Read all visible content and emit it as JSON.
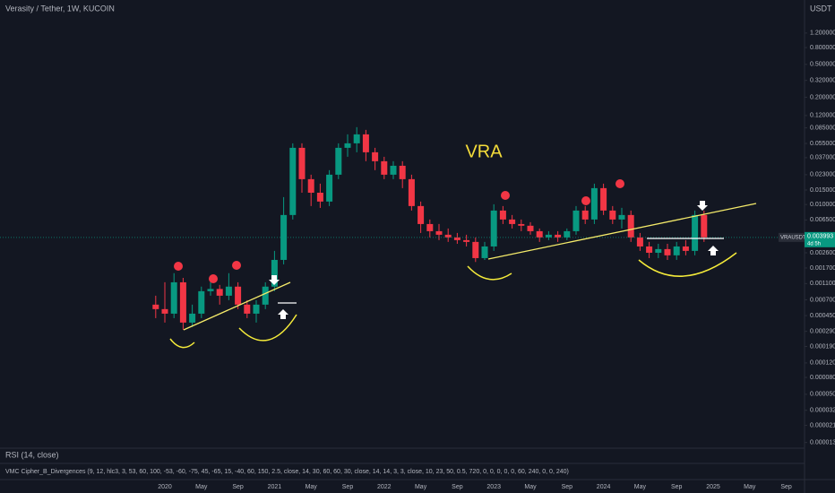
{
  "chart_data": {
    "type": "candlestick",
    "title": "Verasity / Tether, 1W, KUCOIN",
    "currency": "USDT",
    "symbol_tag": "VRAUSDT",
    "last_price": 0.003993,
    "countdown": "4d 5h",
    "annotations": [
      "VRA"
    ],
    "indicators": [
      "RSI (14, close)",
      "VMC Cipher_B_Divergences (9, 12, hlc3, 3, 53, 60, 100, -53, -60, -75, 45, -65, 15, -40, 60, 150, 2.5, close, 14, 30, 60, 60, 30, close, 14, 14, 3, 3, close, 10, 23, 50, 0.5, 720, 0, 0, 0, 0, 0, 60, 240, 0, 0, 240)"
    ],
    "log_scale": true,
    "grid": false,
    "up_color": "#089981",
    "down_color": "#f23645",
    "x": [
      "2019-12",
      "2020-01",
      "2020-02",
      "2020-03",
      "2020-04",
      "2020-05",
      "2020-06",
      "2020-07",
      "2020-08",
      "2020-09",
      "2020-10",
      "2020-11",
      "2020-12",
      "2021-01",
      "2021-02",
      "2021-03",
      "2021-04",
      "2021-05",
      "2021-06",
      "2021-07",
      "2021-08",
      "2021-09",
      "2021-10",
      "2021-11",
      "2021-12",
      "2022-01",
      "2022-02",
      "2022-03",
      "2022-04",
      "2022-05",
      "2022-06",
      "2022-07",
      "2022-08",
      "2022-09",
      "2022-10",
      "2022-11",
      "2022-12",
      "2023-01",
      "2023-02",
      "2023-03",
      "2023-04",
      "2023-05",
      "2023-06",
      "2023-07",
      "2023-08",
      "2023-09",
      "2023-10",
      "2023-11",
      "2023-12",
      "2024-01",
      "2024-02",
      "2024-03",
      "2024-04",
      "2024-05",
      "2024-06",
      "2024-07",
      "2024-08",
      "2024-09",
      "2024-10",
      "2024-11",
      "2024-12"
    ],
    "open": [
      0.000611,
      0.000539,
      0.000475,
      0.00114,
      0.00037,
      0.000475,
      0.000889,
      0.000946,
      0.000784,
      0.00101,
      0.000611,
      0.000475,
      0.000611,
      0.00101,
      0.00213,
      0.00746,
      0.0487,
      0.0203,
      0.0139,
      0.01086,
      0.023,
      0.0487,
      0.0552,
      0.0709,
      0.043,
      0.0335,
      0.023,
      0.0295,
      0.0203,
      0.00958,
      0.0058,
      0.00475,
      0.0043,
      0.00399,
      0.0037,
      0.00352,
      0.00224,
      0.0031,
      0.00845,
      0.00658,
      0.0058,
      0.00553,
      0.00475,
      0.00399,
      0.0043,
      0.00399,
      0.00475,
      0.00845,
      0.00658,
      0.0158,
      0.00845,
      0.00658,
      0.00746,
      0.00399,
      0.0031,
      0.0026,
      0.00288,
      0.00242,
      0.0031,
      0.00274,
      0.00746
    ],
    "high": [
      0.000784,
      0.00114,
      0.00147,
      0.00129,
      0.000611,
      0.00101,
      0.00114,
      0.00106,
      0.00147,
      0.00114,
      0.000692,
      0.000692,
      0.00114,
      0.00274,
      0.0123,
      0.0552,
      0.0552,
      0.023,
      0.0179,
      0.0261,
      0.0552,
      0.0709,
      0.0867,
      0.0804,
      0.0487,
      0.0379,
      0.0335,
      0.0335,
      0.023,
      0.01086,
      0.00658,
      0.0058,
      0.00512,
      0.00452,
      0.0043,
      0.00399,
      0.00352,
      0.01007,
      0.00958,
      0.00746,
      0.00658,
      0.0061,
      0.00512,
      0.00475,
      0.00475,
      0.00512,
      0.00958,
      0.00958,
      0.0179,
      0.0179,
      0.00958,
      0.0091,
      0.00845,
      0.00452,
      0.00352,
      0.00334,
      0.00334,
      0.00352,
      0.0037,
      0.00845,
      0.00845
    ],
    "low": [
      0.000419,
      0.00037,
      0.000419,
      0.000303,
      0.000327,
      0.000419,
      0.000784,
      0.000611,
      0.000692,
      0.000539,
      0.000419,
      0.00037,
      0.000539,
      0.000889,
      0.00188,
      0.00658,
      0.0139,
      0.00958,
      0.0091,
      0.00958,
      0.0203,
      0.0379,
      0.043,
      0.0335,
      0.0261,
      0.0203,
      0.0203,
      0.0158,
      0.00845,
      0.00452,
      0.00399,
      0.0037,
      0.00352,
      0.00334,
      0.0031,
      0.00201,
      0.00213,
      0.00274,
      0.0058,
      0.00512,
      0.00475,
      0.0043,
      0.00352,
      0.0037,
      0.00352,
      0.0037,
      0.0043,
      0.0058,
      0.0058,
      0.00746,
      0.0058,
      0.00512,
      0.00352,
      0.00274,
      0.00224,
      0.00224,
      0.00213,
      0.00213,
      0.00242,
      0.00242,
      0.00352
    ],
    "close": [
      0.000539,
      0.000475,
      0.00114,
      0.00037,
      0.000475,
      0.000889,
      0.000946,
      0.000784,
      0.00101,
      0.000611,
      0.000475,
      0.000611,
      0.00101,
      0.00213,
      0.00746,
      0.0487,
      0.0203,
      0.0139,
      0.01086,
      0.023,
      0.0487,
      0.0552,
      0.0709,
      0.043,
      0.0335,
      0.023,
      0.0295,
      0.0203,
      0.00958,
      0.0058,
      0.00475,
      0.0043,
      0.00399,
      0.0037,
      0.00352,
      0.00224,
      0.0031,
      0.00845,
      0.00658,
      0.0058,
      0.00553,
      0.00475,
      0.00399,
      0.0043,
      0.00399,
      0.00475,
      0.00845,
      0.00658,
      0.0158,
      0.00845,
      0.00658,
      0.00746,
      0.00399,
      0.0031,
      0.0026,
      0.00288,
      0.00242,
      0.0031,
      0.00274,
      0.00746,
      0.003993
    ],
    "ylim": [
      1.11e-05,
      3.02
    ],
    "yticks": [
      {
        "value": 1.2,
        "label": "1.200000"
      },
      {
        "value": 0.8,
        "label": "0.800000"
      },
      {
        "value": 0.5,
        "label": "0.500000"
      },
      {
        "value": 0.32,
        "label": "0.320000"
      },
      {
        "value": 0.2,
        "label": "0.200000"
      },
      {
        "value": 0.12,
        "label": "0.120000"
      },
      {
        "value": 0.085,
        "label": "0.085000"
      },
      {
        "value": 0.055,
        "label": "0.055000"
      },
      {
        "value": 0.037,
        "label": "0.037000"
      },
      {
        "value": 0.023,
        "label": "0.023000"
      },
      {
        "value": 0.015,
        "label": "0.015000"
      },
      {
        "value": 0.01,
        "label": "0.010000"
      },
      {
        "value": 0.0065,
        "label": "0.006500"
      },
      {
        "value": 0.0026,
        "label": "0.002600"
      },
      {
        "value": 0.0017,
        "label": "0.001700"
      },
      {
        "value": 0.0011,
        "label": "0.001100"
      },
      {
        "value": 0.0007,
        "label": "0.000700"
      },
      {
        "value": 0.00045,
        "label": "0.000450"
      },
      {
        "value": 0.00029,
        "label": "0.000290"
      },
      {
        "value": 0.00019,
        "label": "0.000190"
      },
      {
        "value": 0.00012,
        "label": "0.000120"
      },
      {
        "value": 8e-05,
        "label": "0.000080"
      },
      {
        "value": 5e-05,
        "label": "0.000050"
      },
      {
        "value": 3.2e-05,
        "label": "0.000032"
      },
      {
        "value": 2.1e-05,
        "label": "0.000021"
      },
      {
        "value": 1.3e-05,
        "label": "0.000013"
      }
    ],
    "xticks": [
      {
        "value": "2020-01",
        "label": "2020"
      },
      {
        "value": "2020-05",
        "label": "May"
      },
      {
        "value": "2020-09",
        "label": "Sep"
      },
      {
        "value": "2021-01",
        "label": "2021"
      },
      {
        "value": "2021-05",
        "label": "May"
      },
      {
        "value": "2021-09",
        "label": "Sep"
      },
      {
        "value": "2022-01",
        "label": "2022"
      },
      {
        "value": "2022-05",
        "label": "May"
      },
      {
        "value": "2022-09",
        "label": "Sep"
      },
      {
        "value": "2023-01",
        "label": "2023"
      },
      {
        "value": "2023-05",
        "label": "May"
      },
      {
        "value": "2023-09",
        "label": "Sep"
      },
      {
        "value": "2024-01",
        "label": "2024"
      },
      {
        "value": "2024-05",
        "label": "May"
      },
      {
        "value": "2024-09",
        "label": "Sep"
      },
      {
        "value": "2025-01",
        "label": "2025"
      },
      {
        "value": "2025-05",
        "label": "May"
      },
      {
        "value": "2025-09",
        "label": "Sep"
      }
    ]
  }
}
